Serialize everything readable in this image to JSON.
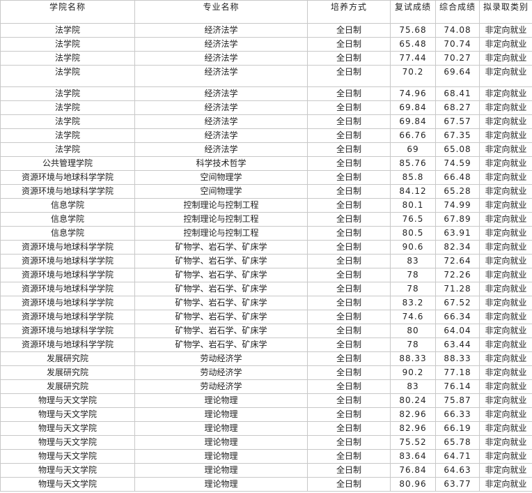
{
  "table": {
    "header": [
      "学院名称",
      "专业名称",
      "培养方式",
      "复试成绩",
      "综合成绩",
      "拟录取类别"
    ],
    "rows": [
      [
        "法学院",
        "经济法学",
        "全日制",
        75.68,
        74.08,
        "非定向就业"
      ],
      [
        "法学院",
        "经济法学",
        "全日制",
        65.48,
        70.74,
        "非定向就业"
      ],
      [
        "法学院",
        "经济法学",
        "全日制",
        77.44,
        70.27,
        "非定向就业"
      ],
      [
        "法学院",
        "经济法学",
        "全日制",
        70.2,
        69.64,
        "非定向就业"
      ],
      [
        "法学院",
        "经济法学",
        "全日制",
        74.96,
        68.41,
        "非定向就业"
      ],
      [
        "法学院",
        "经济法学",
        "全日制",
        69.84,
        68.27,
        "非定向就业"
      ],
      [
        "法学院",
        "经济法学",
        "全日制",
        69.84,
        67.57,
        "非定向就业"
      ],
      [
        "法学院",
        "经济法学",
        "全日制",
        66.76,
        67.35,
        "非定向就业"
      ],
      [
        "法学院",
        "经济法学",
        "全日制",
        69,
        65.08,
        "非定向就业"
      ],
      [
        "公共管理学院",
        "科学技术哲学",
        "全日制",
        85.76,
        74.59,
        "非定向就业"
      ],
      [
        "资源环境与地球科学学院",
        "空间物理学",
        "全日制",
        85.8,
        66.48,
        "非定向就业"
      ],
      [
        "资源环境与地球科学学院",
        "空间物理学",
        "全日制",
        84.12,
        65.28,
        "非定向就业"
      ],
      [
        "信息学院",
        "控制理论与控制工程",
        "全日制",
        80.1,
        74.99,
        "非定向就业"
      ],
      [
        "信息学院",
        "控制理论与控制工程",
        "全日制",
        76.5,
        67.89,
        "非定向就业"
      ],
      [
        "信息学院",
        "控制理论与控制工程",
        "全日制",
        80.5,
        63.91,
        "非定向就业"
      ],
      [
        "资源环境与地球科学学院",
        "矿物学、岩石学、矿床学",
        "全日制",
        90.6,
        82.34,
        "非定向就业"
      ],
      [
        "资源环境与地球科学学院",
        "矿物学、岩石学、矿床学",
        "全日制",
        83,
        72.64,
        "非定向就业"
      ],
      [
        "资源环境与地球科学学院",
        "矿物学、岩石学、矿床学",
        "全日制",
        78,
        72.26,
        "非定向就业"
      ],
      [
        "资源环境与地球科学学院",
        "矿物学、岩石学、矿床学",
        "全日制",
        78,
        71.28,
        "非定向就业"
      ],
      [
        "资源环境与地球科学学院",
        "矿物学、岩石学、矿床学",
        "全日制",
        83.2,
        67.52,
        "非定向就业"
      ],
      [
        "资源环境与地球科学学院",
        "矿物学、岩石学、矿床学",
        "全日制",
        74.6,
        66.34,
        "非定向就业"
      ],
      [
        "资源环境与地球科学学院",
        "矿物学、岩石学、矿床学",
        "全日制",
        80,
        64.04,
        "非定向就业"
      ],
      [
        "资源环境与地球科学学院",
        "矿物学、岩石学、矿床学",
        "全日制",
        78,
        63.44,
        "非定向就业"
      ],
      [
        "发展研究院",
        "劳动经济学",
        "全日制",
        88.33,
        88.33,
        "非定向就业"
      ],
      [
        "发展研究院",
        "劳动经济学",
        "全日制",
        90.2,
        77.18,
        "非定向就业"
      ],
      [
        "发展研究院",
        "劳动经济学",
        "全日制",
        83,
        76.14,
        "非定向就业"
      ],
      [
        "物理与天文学院",
        "理论物理",
        "全日制",
        80.24,
        75.87,
        "非定向就业"
      ],
      [
        "物理与天文学院",
        "理论物理",
        "全日制",
        82.96,
        66.33,
        "非定向就业"
      ],
      [
        "物理与天文学院",
        "理论物理",
        "全日制",
        82.96,
        66.19,
        "非定向就业"
      ],
      [
        "物理与天文学院",
        "理论物理",
        "全日制",
        75.52,
        65.78,
        "非定向就业"
      ],
      [
        "物理与天文学院",
        "理论物理",
        "全日制",
        83.64,
        64.71,
        "非定向就业"
      ],
      [
        "物理与天文学院",
        "理论物理",
        "全日制",
        76.84,
        64.63,
        "非定向就业"
      ],
      [
        "物理与天文学院",
        "理论物理",
        "全日制",
        80.96,
        63.77,
        "非定向就业"
      ]
    ]
  }
}
